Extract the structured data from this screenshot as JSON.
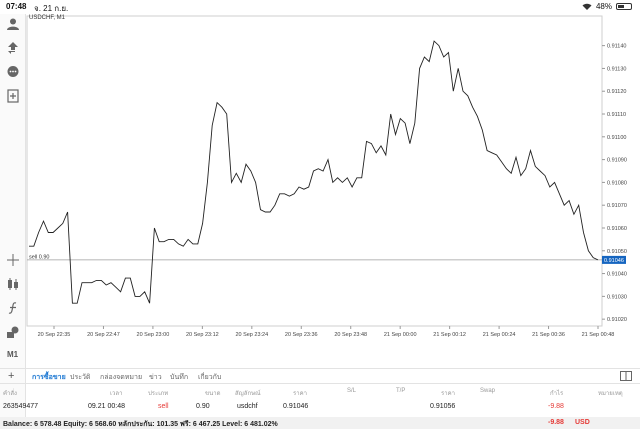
{
  "status": {
    "time": "07:48",
    "date": "จ. 21 ก.ย.",
    "battery": "48%",
    "battery_level": 0.48
  },
  "chart": {
    "symbol": "USDCHF, M1",
    "line_label": "sell 0.90",
    "current_price_badge": "0.91046",
    "color": "#222222",
    "badge_color": "#1565c0"
  },
  "chart_data": {
    "type": "line",
    "ylim": [
      0.91017,
      0.91153
    ],
    "y_ticks": [
      "0.91020",
      "0.91030",
      "0.91040",
      "0.91050",
      "0.91060",
      "0.91070",
      "0.91080",
      "0.91090",
      "0.91100",
      "0.91110",
      "0.91120",
      "0.91130",
      "0.91140"
    ],
    "x_ticks": [
      "20 Sep 22:35",
      "20 Sep 22:47",
      "20 Sep 23:00",
      "20 Sep 23:12",
      "20 Sep 23:24",
      "20 Sep 23:36",
      "20 Sep 23:48",
      "21 Sep 00:00",
      "21 Sep 00:12",
      "21 Sep 00:24",
      "21 Sep 00:36",
      "21 Sep 00:48"
    ],
    "grid": false,
    "values": [
      0.91052,
      0.91052,
      0.91058,
      0.91063,
      0.91058,
      0.91058,
      0.9106,
      0.91062,
      0.91067,
      0.91027,
      0.91027,
      0.91036,
      0.91036,
      0.91036,
      0.91037,
      0.91037,
      0.91035,
      0.91036,
      0.91034,
      0.91032,
      0.91038,
      0.91038,
      0.9103,
      0.9103,
      0.91032,
      0.91027,
      0.9106,
      0.91054,
      0.91054,
      0.91055,
      0.91055,
      0.91053,
      0.91052,
      0.91055,
      0.91053,
      0.91053,
      0.91062,
      0.9108,
      0.91105,
      0.91115,
      0.91113,
      0.9111,
      0.9108,
      0.91084,
      0.9108,
      0.91088,
      0.91085,
      0.9108,
      0.91068,
      0.91067,
      0.91067,
      0.9107,
      0.91075,
      0.91075,
      0.91074,
      0.91075,
      0.91078,
      0.91077,
      0.91078,
      0.91085,
      0.91086,
      0.91085,
      0.9109,
      0.9108,
      0.91082,
      0.9108,
      0.91082,
      0.91078,
      0.91082,
      0.91082,
      0.91098,
      0.91097,
      0.91093,
      0.91096,
      0.91092,
      0.9111,
      0.91101,
      0.91108,
      0.91106,
      0.91097,
      0.91106,
      0.9113,
      0.91135,
      0.91133,
      0.91142,
      0.9114,
      0.91135,
      0.91137,
      0.9112,
      0.9113,
      0.9112,
      0.91118,
      0.91113,
      0.91109,
      0.91103,
      0.91094,
      0.91093,
      0.91092,
      0.91089,
      0.91086,
      0.91084,
      0.91091,
      0.91083,
      0.91086,
      0.91094,
      0.91087,
      0.91085,
      0.91083,
      0.91078,
      0.9108,
      0.91075,
      0.9107,
      0.91072,
      0.91066,
      0.9107,
      0.91058,
      0.9105,
      0.91047,
      0.91046
    ]
  },
  "tabs": [
    "การซื้อขาย",
    "ประวัติ",
    "กล่องจดหมาย",
    "ข่าว",
    "บันทึก",
    "เกี่ยวกับ"
  ],
  "table": {
    "headers": [
      "คำสั่ง",
      "เวลา",
      "ประเภท",
      "ขนาด",
      "สัญลักษณ์",
      "ราคา",
      "S/L",
      "T/P",
      "ราคา",
      "Swap",
      "กำไร",
      "หมายเหตุ"
    ],
    "row": {
      "order": "263549477",
      "time": "09.21 00:48",
      "type": "sell",
      "size": "0.90",
      "symbol": "usdchf",
      "open_price": "0.91046",
      "current_price": "0.91056",
      "profit": "-9.88"
    }
  },
  "balance": {
    "text": "Balance: 6 578.48 Equity: 6 568.60 หลักประกัน: 101.35 ฟรี: 6 467.25 Level: 6 481.02%",
    "profit": "-9.88",
    "currency": "USD"
  }
}
